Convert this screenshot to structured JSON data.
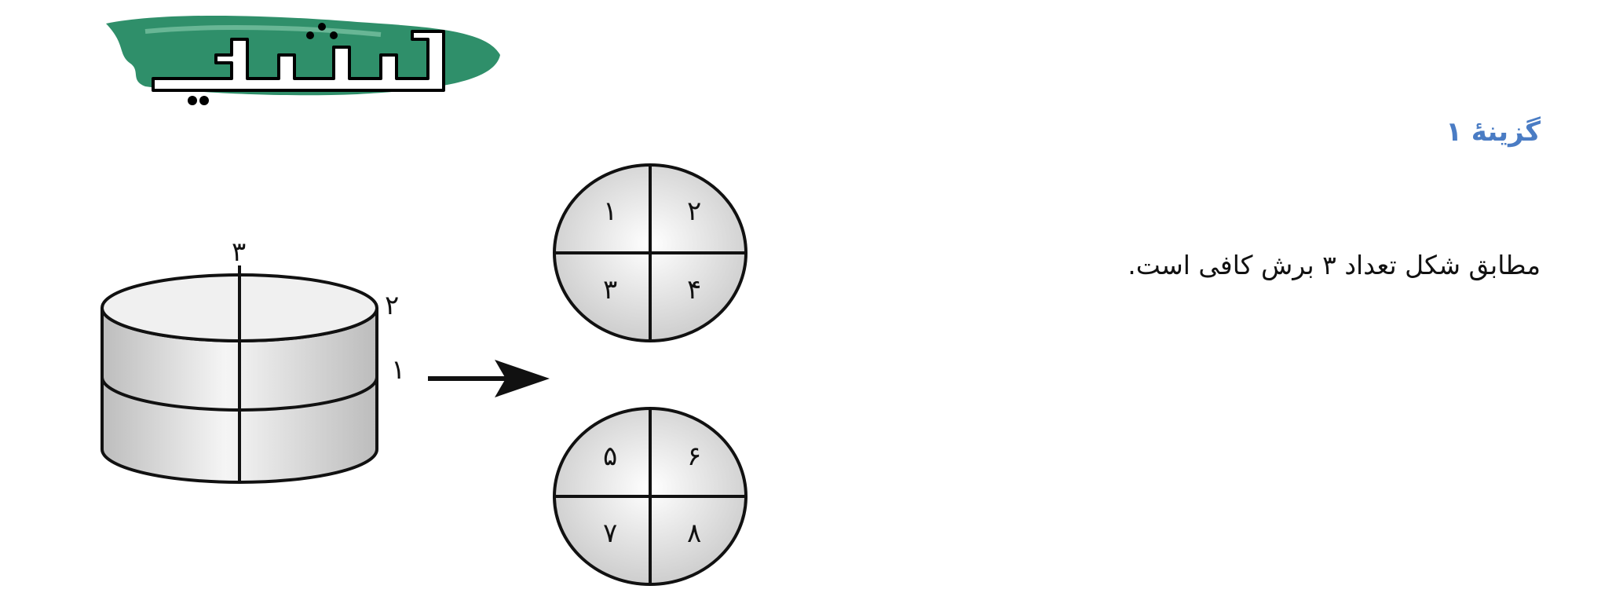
{
  "logo": {
    "text": "گچ سفید",
    "brand_color": "#2f8f6a"
  },
  "answer": {
    "heading": "گزینهٔ ۱",
    "heading_color": "#4a7cc4",
    "explanation": "مطابق شکل تعداد ۳ برش کافی است."
  },
  "figure": {
    "cut_labels": [
      "۱",
      "۲",
      "۳"
    ],
    "top_disc_labels": [
      "۱",
      "۲",
      "۳",
      "۴"
    ],
    "bottom_disc_labels": [
      "۵",
      "۶",
      "۷",
      "۸"
    ]
  }
}
